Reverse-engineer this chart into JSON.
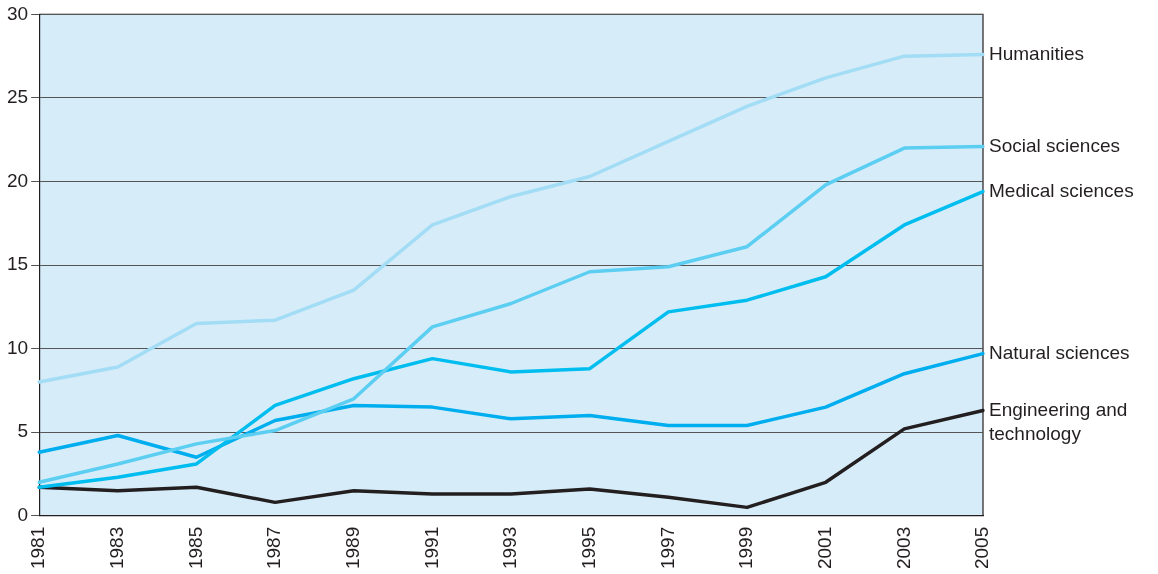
{
  "chart_data": {
    "type": "line",
    "categories": [
      "1981",
      "1983",
      "1985",
      "1987",
      "1989",
      "1991",
      "1993",
      "1995",
      "1997",
      "1999",
      "2001",
      "2003",
      "2005"
    ],
    "ylim": [
      0,
      30
    ],
    "yticks": [
      0,
      5,
      10,
      15,
      20,
      25,
      30
    ],
    "grid": "y",
    "legend": false,
    "marker": "none",
    "line_style": "solid",
    "series": [
      {
        "name": "Humanities",
        "color": "#a3dcf5",
        "values": [
          8.0,
          8.9,
          11.5,
          11.7,
          13.5,
          17.4,
          19.1,
          20.3,
          22.4,
          24.5,
          26.2,
          27.5,
          27.6
        ]
      },
      {
        "name": "Social sciences",
        "color": "#5ccef2",
        "values": [
          2.0,
          3.1,
          4.3,
          5.1,
          7.0,
          11.3,
          12.7,
          14.6,
          14.9,
          16.1,
          19.8,
          22.0,
          22.1
        ]
      },
      {
        "name": "Medical sciences",
        "color": "#00bdf0",
        "values": [
          1.7,
          2.3,
          3.1,
          6.6,
          8.2,
          9.4,
          8.6,
          8.8,
          12.2,
          12.9,
          14.3,
          17.4,
          19.4
        ]
      },
      {
        "name": "Natural sciences",
        "color": "#00aeef",
        "values": [
          3.8,
          4.8,
          3.5,
          5.7,
          6.6,
          6.5,
          5.8,
          6.0,
          5.4,
          5.4,
          6.5,
          8.5,
          9.7
        ]
      },
      {
        "name": "Engineering and technology",
        "color": "#231f20",
        "values": [
          1.7,
          1.5,
          1.7,
          0.8,
          1.5,
          1.3,
          1.3,
          1.6,
          1.1,
          0.5,
          2.0,
          5.2,
          6.3
        ]
      }
    ]
  }
}
